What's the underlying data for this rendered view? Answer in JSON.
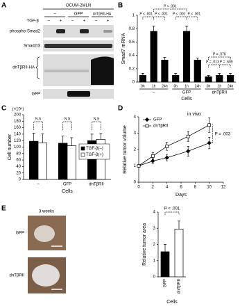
{
  "panels": {
    "a": "A",
    "b": "B",
    "c": "C",
    "d": "D",
    "e": "E"
  },
  "blot": {
    "cell_line": "OCUM-2MLN",
    "treatment": "TGF-β",
    "signs": [
      "–",
      "+",
      "–",
      "+",
      "–",
      "+"
    ],
    "groups": [
      "–",
      "GFP",
      "dnTβRII-HA"
    ],
    "rows": [
      "phospho-Smad2",
      "Smad2/3",
      "dnTβRII-HA",
      "GFP"
    ]
  },
  "photos": {
    "time": "3 weeks",
    "labels": [
      "GFP",
      "dnTβRII"
    ]
  },
  "chart_data": [
    {
      "type": "bar",
      "y_label": "Smad7 mRNA",
      "x_label": "Cells",
      "categories": [
        "0h",
        "1h",
        "24h",
        "0h",
        "1h",
        "24h",
        "0h",
        "1h",
        "24h"
      ],
      "groups": [
        "–",
        "GFP",
        "dnTβRII"
      ],
      "values": [
        0.1,
        0.76,
        0.33,
        0.1,
        0.76,
        0.33,
        0.08,
        0.1,
        0.1
      ],
      "errors": [
        0.03,
        0.08,
        0.04,
        0.03,
        0.08,
        0.03,
        0.02,
        0.03,
        0.03
      ],
      "color": "#000000",
      "ylim": [
        0,
        1
      ],
      "yticks": [
        0,
        0.2,
        0.4,
        0.6,
        0.8,
        1
      ],
      "annotations": [
        "P < .001",
        "P < .001",
        "P < .001",
        "P < .001",
        "P < .001",
        "P = .076",
        "P = .013",
        "P = .609"
      ]
    },
    {
      "type": "grouped_bar",
      "y_label": "Cell number",
      "y_unit": "(×10⁴)",
      "x_label": "Cells",
      "categories": [
        "–",
        "GFP",
        "dnTβRII"
      ],
      "series": [
        {
          "name": "TGF-β(–)",
          "color": "#000000",
          "values": [
            118,
            112,
            120
          ],
          "errors": [
            25,
            22,
            20
          ]
        },
        {
          "name": "TGF-β(+)",
          "color": "#ffffff",
          "values": [
            113,
            104,
            124
          ],
          "errors": [
            28,
            25,
            18
          ]
        }
      ],
      "ylim": [
        0,
        200
      ],
      "yticks": [
        0,
        20,
        40,
        60,
        80,
        100,
        120,
        140,
        160,
        180,
        200
      ],
      "annotations": [
        "N.S",
        "N.S",
        "N.S"
      ],
      "legend": "right"
    },
    {
      "type": "line",
      "title": "in vivo",
      "x_label": "Days",
      "y_label": "Relative tumor volume",
      "x": [
        0,
        2,
        4,
        7,
        10
      ],
      "series": [
        {
          "name": "GFP",
          "color": "#000000",
          "marker": "diamond",
          "values": [
            1,
            1.3,
            1.5,
            1.9,
            2.4
          ],
          "errors": [
            0.05,
            0.15,
            0.2,
            0.3,
            0.35
          ]
        },
        {
          "name": "dnTβRII",
          "color": "#ffffff",
          "marker": "square",
          "values": [
            1,
            1.6,
            2.2,
            2.8,
            3.5
          ],
          "errors": [
            0.05,
            0.2,
            0.25,
            0.3,
            0.45
          ]
        }
      ],
      "xlim": [
        0,
        12
      ],
      "xticks": [
        0,
        2,
        4,
        6,
        8,
        10,
        12
      ],
      "ylim": [
        0,
        4
      ],
      "yticks": [
        0,
        1,
        2,
        3,
        4
      ],
      "annotations": [
        "P = .003"
      ],
      "legend": "upper left"
    },
    {
      "type": "bar",
      "x_label": "Cells",
      "y_label": "Relative tumor area",
      "categories": [
        "GFP",
        "dnTβRII"
      ],
      "values": [
        1.55,
        2.95
      ],
      "errors": [
        0.45,
        0.5
      ],
      "colors": [
        "#000000",
        "#ffffff"
      ],
      "ylim": [
        0,
        4
      ],
      "yticks": [
        0,
        1,
        2,
        3,
        4
      ],
      "annotations": [
        "P < .001"
      ]
    }
  ]
}
